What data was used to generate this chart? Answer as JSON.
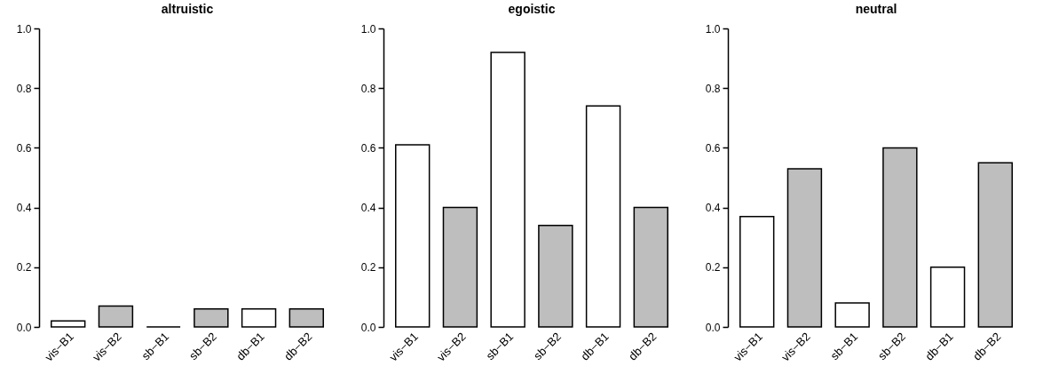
{
  "chart_data": [
    {
      "type": "bar",
      "title": "altruistic",
      "categories": [
        "vis−B1",
        "vis−B2",
        "sb−B1",
        "sb−B2",
        "db−B1",
        "db−B2"
      ],
      "values": [
        0.02,
        0.07,
        0,
        0.06,
        0.06,
        0.06
      ],
      "colors": [
        "#ffffff",
        "#bebebe",
        "#000000",
        "#bebebe",
        "#ffffff",
        "#bebebe"
      ],
      "ylim": [
        0,
        1
      ],
      "yticks": [
        {
          "value": 0,
          "label": "0.0"
        },
        {
          "value": 0.2,
          "label": "0.2"
        },
        {
          "value": 0.4,
          "label": "0.4"
        },
        {
          "value": 0.6,
          "label": "0.6"
        },
        {
          "value": 0.8,
          "label": "0.8"
        },
        {
          "value": 1,
          "label": "1.0"
        }
      ]
    },
    {
      "type": "bar",
      "title": "egoistic",
      "categories": [
        "vis−B1",
        "vis−B2",
        "sb−B1",
        "sb−B2",
        "db−B1",
        "db−B2"
      ],
      "values": [
        0.61,
        0.4,
        0.92,
        0.34,
        0.74,
        0.4
      ],
      "colors": [
        "#ffffff",
        "#bebebe",
        "#ffffff",
        "#bebebe",
        "#ffffff",
        "#bebebe"
      ],
      "ylim": [
        0,
        1
      ],
      "yticks": [
        {
          "value": 0,
          "label": "0.0"
        },
        {
          "value": 0.2,
          "label": "0.2"
        },
        {
          "value": 0.4,
          "label": "0.4"
        },
        {
          "value": 0.6,
          "label": "0.6"
        },
        {
          "value": 0.8,
          "label": "0.8"
        },
        {
          "value": 1,
          "label": "1.0"
        }
      ]
    },
    {
      "type": "bar",
      "title": "neutral",
      "categories": [
        "vis−B1",
        "vis−B2",
        "sb−B1",
        "sb−B2",
        "db−B1",
        "db−B2"
      ],
      "values": [
        0.37,
        0.53,
        0.08,
        0.6,
        0.2,
        0.55
      ],
      "colors": [
        "#ffffff",
        "#bebebe",
        "#ffffff",
        "#bebebe",
        "#ffffff",
        "#bebebe"
      ],
      "ylim": [
        0,
        1
      ],
      "yticks": [
        {
          "value": 0,
          "label": "0.0"
        },
        {
          "value": 0.2,
          "label": "0.2"
        },
        {
          "value": 0.4,
          "label": "0.4"
        },
        {
          "value": 0.6,
          "label": "0.6"
        },
        {
          "value": 0.8,
          "label": "0.8"
        },
        {
          "value": 1,
          "label": "1.0"
        }
      ]
    }
  ]
}
